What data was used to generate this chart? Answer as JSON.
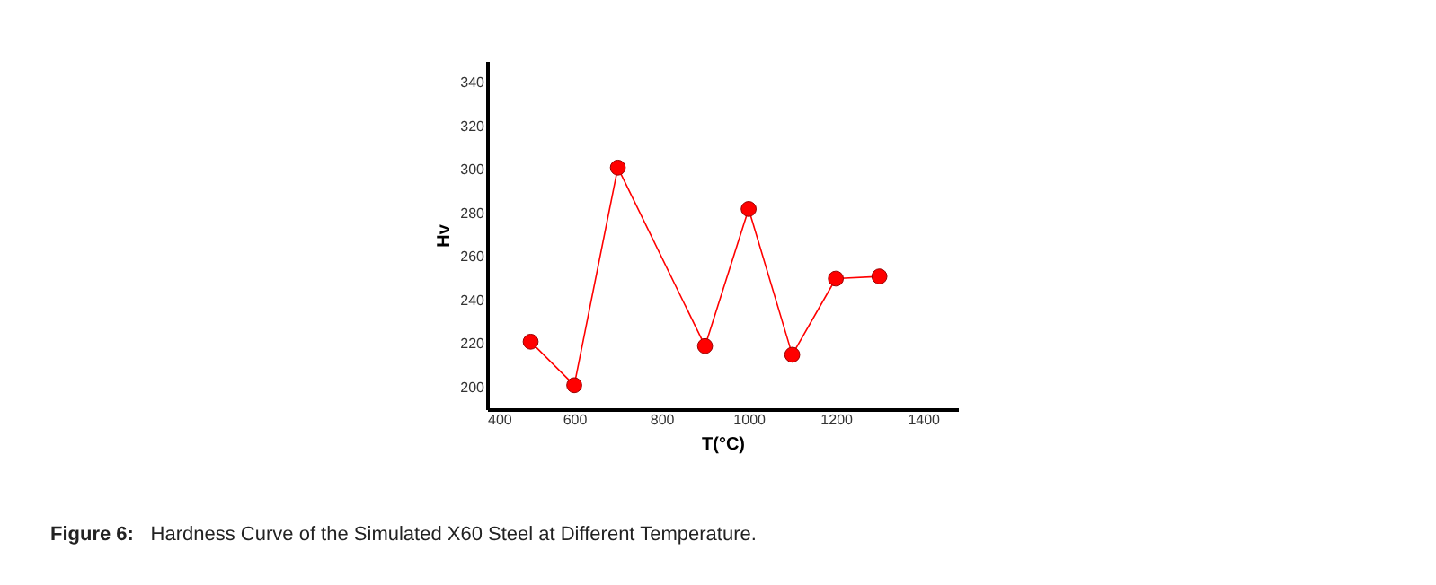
{
  "chart_data": {
    "type": "line",
    "xlabel": "T(°C)",
    "ylabel": "Hv",
    "x": [
      500,
      600,
      700,
      900,
      1000,
      1100,
      1200,
      1300
    ],
    "series": [
      {
        "color": "#ff0000",
        "values": [
          221,
          201,
          301,
          219,
          282,
          215,
          250,
          251
        ]
      }
    ],
    "xlim": [
      400,
      1480
    ],
    "xticks": [
      400,
      600,
      800,
      1000,
      1200,
      1400
    ],
    "ylim": [
      190,
      350
    ],
    "yticks": [
      200,
      220,
      240,
      260,
      280,
      300,
      320,
      340
    ],
    "marker": "circle",
    "line_style": "solid",
    "grid": false,
    "annotations": [
      "Figure 6: Hardness Curve of the Simulated X60 Steel at Different Temperature."
    ]
  }
}
